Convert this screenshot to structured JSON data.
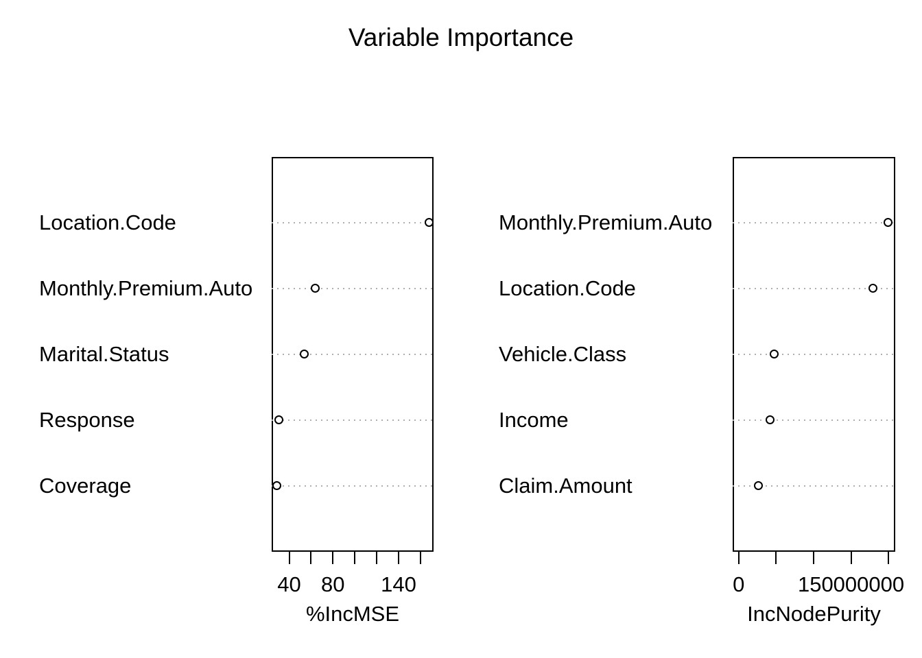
{
  "title": "Variable Importance",
  "colors": {
    "foreground": "#000000",
    "gridline": "#b0b0b0",
    "background": "#ffffff",
    "marker_fill": "#ffffff"
  },
  "chart_data": [
    {
      "type": "scatter",
      "variant": "dot-plot",
      "panel": "left",
      "xlabel": "%IncMSE",
      "categories_top_to_bottom": [
        "Location.Code",
        "Monthly.Premium.Auto",
        "Marital.Status",
        "Response",
        "Coverage"
      ],
      "values": [
        168,
        64,
        54,
        31,
        29
      ],
      "xlim": [
        24,
        172
      ],
      "xticks": [
        40,
        60,
        80,
        100,
        120,
        140,
        160
      ],
      "xtick_labels": [
        "40",
        "",
        "80",
        "",
        "",
        "140",
        ""
      ],
      "grid": "horizontal-dotted",
      "marker": "open-circle",
      "legend": "none"
    },
    {
      "type": "scatter",
      "variant": "dot-plot",
      "panel": "right",
      "xlabel": "IncNodePurity",
      "categories_top_to_bottom": [
        "Monthly.Premium.Auto",
        "Location.Code",
        "Vehicle.Class",
        "Income",
        "Claim.Amount"
      ],
      "values": [
        200000000,
        180000000,
        48000000,
        42000000,
        27000000
      ],
      "xlim": [
        -8000000,
        209000000
      ],
      "xticks": [
        0,
        50000000,
        100000000,
        150000000,
        200000000
      ],
      "xtick_labels": [
        "0",
        "",
        "",
        "150000000",
        ""
      ],
      "grid": "horizontal-dotted",
      "marker": "open-circle",
      "legend": "none"
    }
  ]
}
